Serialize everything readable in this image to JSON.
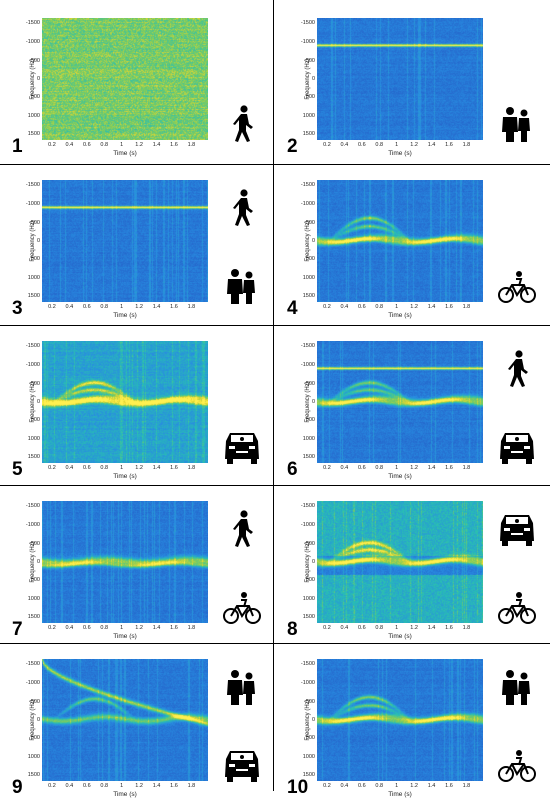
{
  "axis": {
    "ylabel": "Frequency (Hz)",
    "xlabel": "Time (s)",
    "yticks": [
      "-1500",
      "-1000",
      "-500",
      "0",
      "500",
      "1000",
      "1500"
    ],
    "xticks": [
      "0.2",
      "0.4",
      "0.6",
      "0.8",
      "1",
      "1.2",
      "1.4",
      "1.6",
      "1.8"
    ]
  },
  "panels": [
    {
      "number": "1",
      "icons": [
        "walking-person-icon"
      ],
      "bg": "noisy",
      "line": null,
      "curves": "none"
    },
    {
      "number": "2",
      "icons": [
        "two-persons-icon"
      ],
      "bg": "blue",
      "line": -950,
      "curves": "none"
    },
    {
      "number": "3",
      "icons": [
        "walking-person-icon",
        "two-persons-icon"
      ],
      "bg": "blue",
      "line": -950,
      "curves": "none"
    },
    {
      "number": "4",
      "icons": [
        "bicycle-icon"
      ],
      "bg": "blue",
      "line": null,
      "curves": "bike"
    },
    {
      "number": "5",
      "icons": [
        "car-icon"
      ],
      "bg": "mid",
      "line": null,
      "curves": "car"
    },
    {
      "number": "6",
      "icons": [
        "walking-person-icon",
        "car-icon"
      ],
      "bg": "blue",
      "line": -950,
      "curves": "car"
    },
    {
      "number": "7",
      "icons": [
        "walking-person-icon",
        "bicycle-icon"
      ],
      "bg": "blue",
      "line": null,
      "curves": "flat"
    },
    {
      "number": "8",
      "icons": [
        "car-icon",
        "bicycle-icon"
      ],
      "bg": "split",
      "line": null,
      "curves": "car"
    },
    {
      "number": "9",
      "icons": [
        "two-persons-icon",
        "car-icon"
      ],
      "bg": "blue",
      "line": null,
      "curves": "arc"
    },
    {
      "number": "10",
      "icons": [
        "two-persons-icon",
        "bicycle-icon"
      ],
      "bg": "blue",
      "line": null,
      "curves": "bike"
    }
  ]
}
